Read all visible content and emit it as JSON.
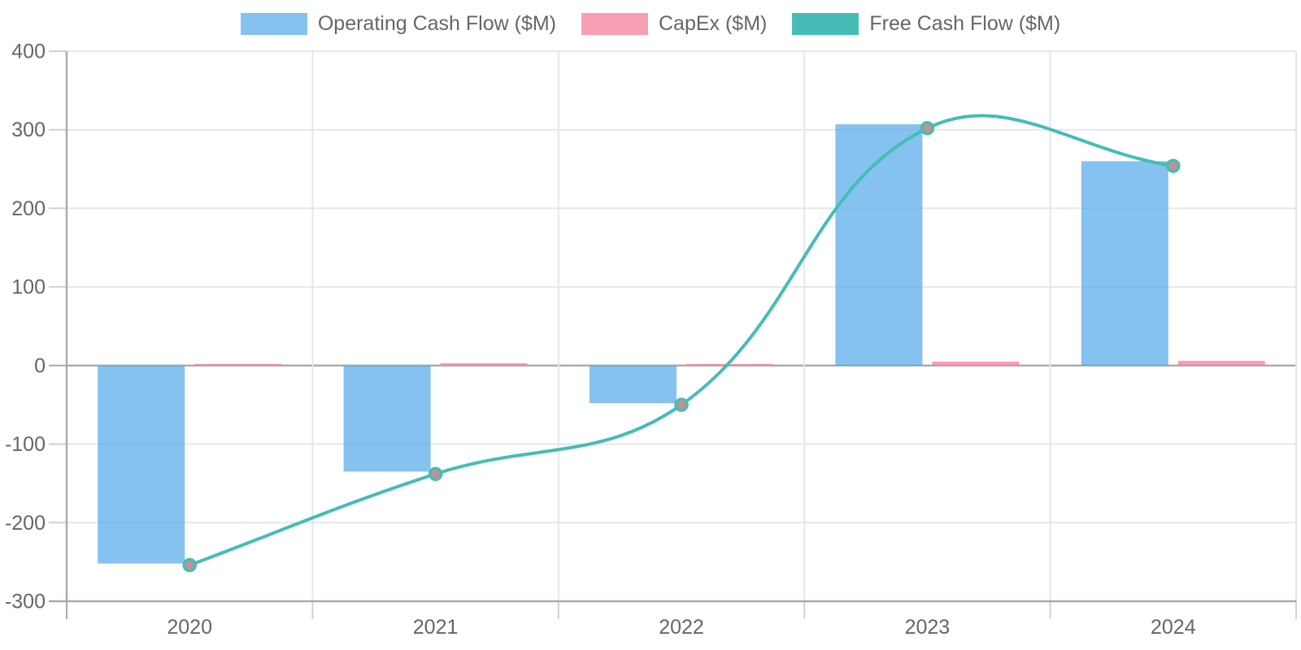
{
  "legend": {
    "items": [
      {
        "label": "Operating Cash Flow ($M)",
        "color": "#85C2F0"
      },
      {
        "label": "CapEx ($M)",
        "color": "#F99FB3"
      },
      {
        "label": "Free Cash Flow ($M)",
        "color": "#45BCB6"
      }
    ]
  },
  "chart_data": {
    "type": "bar",
    "title": "",
    "xlabel": "",
    "ylabel": "",
    "categories": [
      "2020",
      "2021",
      "2022",
      "2023",
      "2024"
    ],
    "series": [
      {
        "name": "Operating Cash Flow ($M)",
        "type": "bar",
        "values": [
          -252,
          -135,
          -48,
          307,
          260
        ],
        "color": "#85C2F0",
        "fill": "rgba(86,170,234,0.72)"
      },
      {
        "name": "CapEx ($M)",
        "type": "bar",
        "values": [
          2,
          3,
          2,
          5,
          6
        ],
        "color": "#F99FB3",
        "fill": "rgba(247,132,158,0.78)"
      },
      {
        "name": "Free Cash Flow ($M)",
        "type": "line",
        "values": [
          -254,
          -138,
          -50,
          302,
          254
        ],
        "color": "#45BCB6",
        "point_fill": "#C98E92",
        "tension": 0.4
      }
    ],
    "yticks": [
      400,
      300,
      200,
      100,
      0,
      -100,
      -200,
      -300
    ],
    "ylim": [
      -300,
      400
    ],
    "grid": true,
    "legend_position": "top",
    "axis_colors": {
      "grid": "#E7E7E7",
      "zero_line": "#ABABAB",
      "border": "#ABABAB",
      "tick_mark": "#D2D2D2",
      "tick_text": "#666666"
    }
  }
}
